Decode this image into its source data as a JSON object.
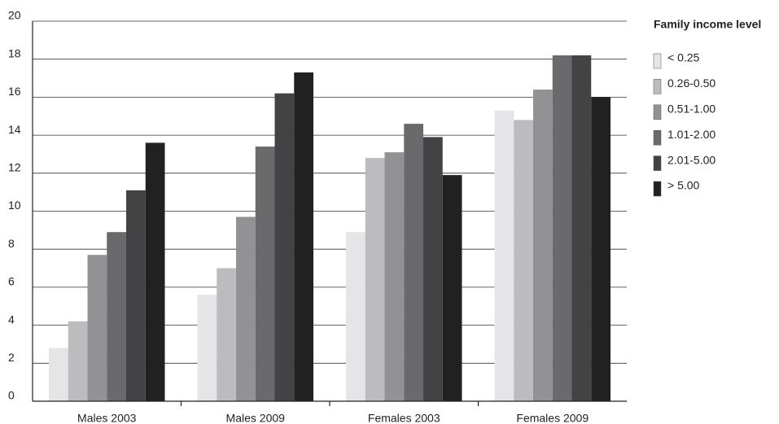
{
  "chart_data": {
    "type": "bar",
    "categories": [
      "Males 2003",
      "Males 2009",
      "Females 2003",
      "Females 2009"
    ],
    "legend_title": "Family income level",
    "series": [
      {
        "name": "< 0.25",
        "color": "#e5e5e7",
        "values": [
          2.8,
          5.6,
          8.9,
          15.3
        ]
      },
      {
        "name": "0.26-0.50",
        "color": "#bcbcbf",
        "values": [
          4.2,
          7.0,
          12.8,
          14.8
        ]
      },
      {
        "name": "0.51-1.00",
        "color": "#929295",
        "values": [
          7.7,
          9.7,
          13.1,
          16.4
        ]
      },
      {
        "name": "1.01-2.00",
        "color": "#6a6a6d",
        "values": [
          8.9,
          13.4,
          14.6,
          18.2
        ]
      },
      {
        "name": "2.01-5.00",
        "color": "#434345",
        "values": [
          11.1,
          16.2,
          13.9,
          18.2
        ]
      },
      {
        "name": "> 5.00",
        "color": "#212121",
        "values": [
          13.6,
          17.3,
          11.9,
          16.0
        ]
      }
    ],
    "ylim": [
      0,
      20
    ],
    "yticks": [
      0,
      2,
      4,
      6,
      8,
      10,
      12,
      14,
      16,
      18,
      20
    ],
    "grid": true
  }
}
